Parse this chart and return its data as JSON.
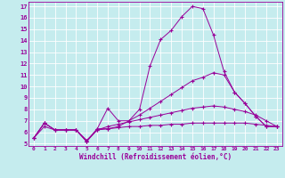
{
  "xlabel": "Windchill (Refroidissement éolien,°C)",
  "background_color": "#c5ecee",
  "line_color": "#990099",
  "xlim": [
    -0.5,
    23.5
  ],
  "ylim": [
    4.8,
    17.4
  ],
  "yticks": [
    5,
    6,
    7,
    8,
    9,
    10,
    11,
    12,
    13,
    14,
    15,
    16,
    17
  ],
  "xticks": [
    0,
    1,
    2,
    3,
    4,
    5,
    6,
    7,
    8,
    9,
    10,
    11,
    12,
    13,
    14,
    15,
    16,
    17,
    18,
    19,
    20,
    21,
    22,
    23
  ],
  "line1_x": [
    0,
    1,
    2,
    3,
    4,
    5,
    6,
    7,
    8,
    9,
    10,
    11,
    12,
    13,
    14,
    15,
    16,
    17,
    18,
    19,
    20,
    21,
    22,
    23
  ],
  "line1_y": [
    5.5,
    6.8,
    6.2,
    6.2,
    6.2,
    5.2,
    6.3,
    8.1,
    7.0,
    7.0,
    8.0,
    11.8,
    14.1,
    14.9,
    16.1,
    17.0,
    16.8,
    14.5,
    11.3,
    9.5,
    8.5,
    7.4,
    6.5,
    6.5
  ],
  "line2_x": [
    0,
    1,
    2,
    3,
    4,
    5,
    6,
    7,
    8,
    9,
    10,
    11,
    12,
    13,
    14,
    15,
    16,
    17,
    18,
    19,
    20,
    21,
    22,
    23
  ],
  "line2_y": [
    5.5,
    6.8,
    6.2,
    6.2,
    6.2,
    5.2,
    6.3,
    6.3,
    6.5,
    7.0,
    7.5,
    8.1,
    8.7,
    9.3,
    9.9,
    10.5,
    10.8,
    11.2,
    11.0,
    9.5,
    8.5,
    7.4,
    6.5,
    6.5
  ],
  "line3_x": [
    0,
    1,
    2,
    3,
    4,
    5,
    6,
    7,
    8,
    9,
    10,
    11,
    12,
    13,
    14,
    15,
    16,
    17,
    18,
    19,
    20,
    21,
    22,
    23
  ],
  "line3_y": [
    5.5,
    6.8,
    6.2,
    6.2,
    6.2,
    5.2,
    6.2,
    6.5,
    6.7,
    6.9,
    7.1,
    7.3,
    7.5,
    7.7,
    7.9,
    8.1,
    8.2,
    8.3,
    8.2,
    8.0,
    7.8,
    7.5,
    7.0,
    6.5
  ],
  "line4_x": [
    0,
    1,
    2,
    3,
    4,
    5,
    6,
    7,
    8,
    9,
    10,
    11,
    12,
    13,
    14,
    15,
    16,
    17,
    18,
    19,
    20,
    21,
    22,
    23
  ],
  "line4_y": [
    5.5,
    6.5,
    6.2,
    6.2,
    6.2,
    5.3,
    6.2,
    6.3,
    6.4,
    6.5,
    6.5,
    6.6,
    6.6,
    6.7,
    6.7,
    6.8,
    6.8,
    6.8,
    6.8,
    6.8,
    6.8,
    6.7,
    6.6,
    6.5
  ]
}
